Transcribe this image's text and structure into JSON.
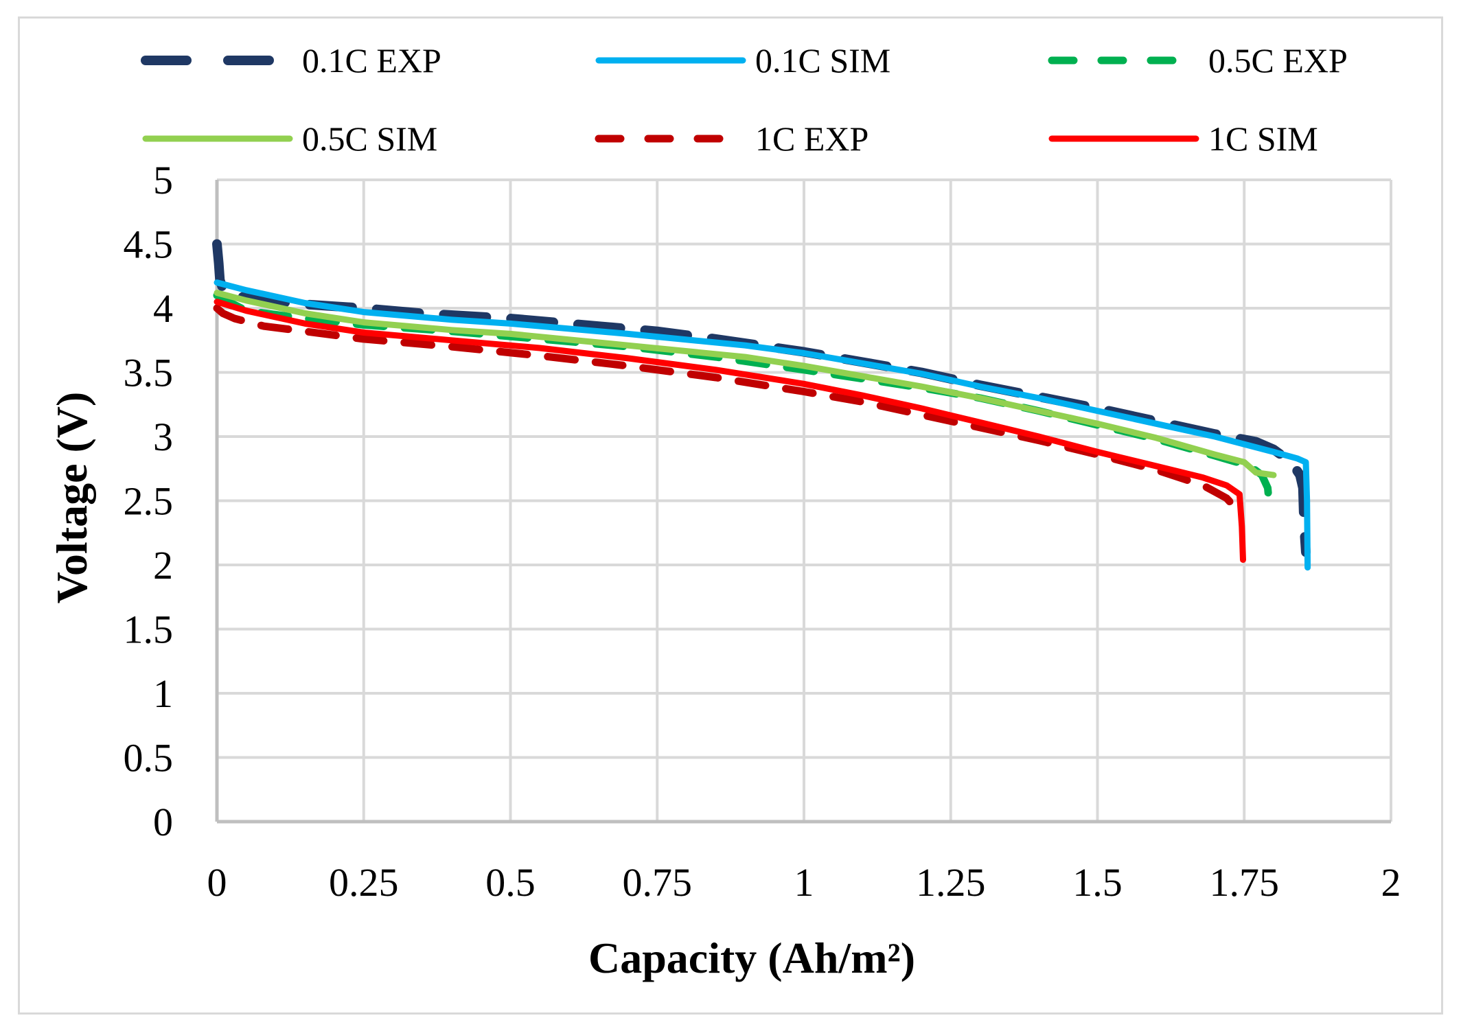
{
  "chart_data": {
    "type": "line",
    "title": "",
    "xlabel": "Capacity (Ah/m²)",
    "ylabel": "Voltage (V)",
    "xlim": [
      0,
      2
    ],
    "ylim": [
      0,
      5
    ],
    "xticks": [
      0,
      0.25,
      0.5,
      0.75,
      1,
      1.25,
      1.5,
      1.75,
      2
    ],
    "xtick_labels": [
      "0",
      "0.25",
      "0.5",
      "0.75",
      "1",
      "1.25",
      "1.5",
      "1.75",
      "2"
    ],
    "yticks": [
      0,
      0.5,
      1,
      1.5,
      2,
      2.5,
      3,
      3.5,
      4,
      4.5,
      5
    ],
    "ytick_labels": [
      "0",
      "0.5",
      "1",
      "1.5",
      "2",
      "2.5",
      "3",
      "3.5",
      "4",
      "4.5",
      "5"
    ],
    "grid": true,
    "legend_position": "top",
    "series": [
      {
        "name": "0.1C EXP",
        "style": "dashed-long",
        "color": "#1f3864",
        "x": [
          0,
          0.003,
          0.005,
          0.01,
          0.03,
          0.08,
          0.15,
          0.25,
          0.35,
          0.5,
          0.65,
          0.75,
          0.85,
          1.0,
          1.1,
          1.2,
          1.3,
          1.4,
          1.5,
          1.6,
          1.7,
          1.77,
          1.8,
          1.83,
          1.845,
          1.85,
          1.852,
          1.855
        ],
        "y": [
          4.5,
          4.35,
          4.22,
          4.15,
          4.1,
          4.06,
          4.03,
          4.0,
          3.96,
          3.92,
          3.86,
          3.82,
          3.76,
          3.66,
          3.58,
          3.5,
          3.4,
          3.31,
          3.22,
          3.12,
          3.02,
          2.96,
          2.9,
          2.8,
          2.7,
          2.6,
          2.3,
          2.1
        ]
      },
      {
        "name": "0.1C SIM",
        "style": "solid",
        "color": "#00b0f0",
        "x": [
          0,
          0.05,
          0.15,
          0.25,
          0.4,
          0.5,
          0.7,
          0.9,
          1.0,
          1.1,
          1.2,
          1.3,
          1.4,
          1.5,
          1.6,
          1.7,
          1.8,
          1.84,
          1.855,
          1.857,
          1.858
        ],
        "y": [
          4.2,
          4.14,
          4.04,
          3.97,
          3.91,
          3.88,
          3.8,
          3.71,
          3.65,
          3.57,
          3.49,
          3.39,
          3.3,
          3.2,
          3.1,
          3.0,
          2.88,
          2.83,
          2.8,
          2.5,
          1.98
        ]
      },
      {
        "name": "0.5C EXP",
        "style": "dashed",
        "color": "#00b050",
        "x": [
          0,
          0.02,
          0.05,
          0.15,
          0.25,
          0.4,
          0.55,
          0.7,
          0.85,
          1.0,
          1.1,
          1.2,
          1.3,
          1.4,
          1.5,
          1.6,
          1.7,
          1.76,
          1.78,
          1.79,
          1.792
        ],
        "y": [
          4.1,
          4.05,
          3.98,
          3.92,
          3.87,
          3.82,
          3.76,
          3.7,
          3.62,
          3.52,
          3.45,
          3.38,
          3.3,
          3.2,
          3.09,
          2.98,
          2.85,
          2.77,
          2.7,
          2.6,
          2.5
        ]
      },
      {
        "name": "0.5C SIM",
        "style": "solid",
        "color": "#92d050",
        "x": [
          0,
          0.05,
          0.15,
          0.25,
          0.4,
          0.5,
          0.7,
          0.9,
          1.0,
          1.1,
          1.2,
          1.3,
          1.4,
          1.5,
          1.6,
          1.7,
          1.75,
          1.77,
          1.8
        ],
        "y": [
          4.12,
          4.06,
          3.96,
          3.89,
          3.83,
          3.8,
          3.71,
          3.62,
          3.55,
          3.47,
          3.39,
          3.3,
          3.2,
          3.1,
          2.99,
          2.86,
          2.8,
          2.72,
          2.7
        ]
      },
      {
        "name": "1C EXP",
        "style": "dashed",
        "color": "#c00000",
        "x": [
          0,
          0.01,
          0.03,
          0.08,
          0.15,
          0.25,
          0.4,
          0.55,
          0.7,
          0.85,
          1.0,
          1.1,
          1.2,
          1.3,
          1.4,
          1.5,
          1.6,
          1.68,
          1.72,
          1.74
        ],
        "y": [
          4.0,
          3.96,
          3.92,
          3.86,
          3.82,
          3.76,
          3.7,
          3.63,
          3.55,
          3.46,
          3.35,
          3.27,
          3.17,
          3.07,
          2.97,
          2.86,
          2.74,
          2.62,
          2.52,
          2.42
        ]
      },
      {
        "name": "1C SIM",
        "style": "solid",
        "color": "#ff0000",
        "x": [
          0,
          0.05,
          0.15,
          0.25,
          0.4,
          0.55,
          0.7,
          0.85,
          1.0,
          1.1,
          1.2,
          1.3,
          1.4,
          1.5,
          1.6,
          1.68,
          1.72,
          1.742,
          1.746,
          1.748
        ],
        "y": [
          4.05,
          3.98,
          3.88,
          3.81,
          3.75,
          3.69,
          3.61,
          3.52,
          3.41,
          3.32,
          3.22,
          3.11,
          3.0,
          2.88,
          2.77,
          2.68,
          2.62,
          2.55,
          2.3,
          2.04
        ]
      }
    ]
  }
}
